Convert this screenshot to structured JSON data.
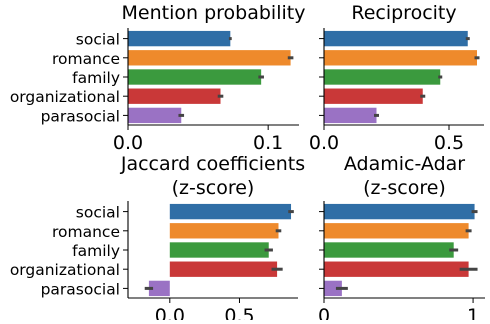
{
  "chart_data": [
    {
      "type": "bar",
      "orientation": "horizontal",
      "title": "Mention probability",
      "categories": [
        "social",
        "romance",
        "family",
        "organizational",
        "parasocial"
      ],
      "values": [
        0.073,
        0.116,
        0.095,
        0.066,
        0.038
      ],
      "errors": [
        0.001,
        0.002,
        0.002,
        0.002,
        0.002
      ],
      "xlim": [
        0.0,
        0.122
      ],
      "xticks": [
        0.0,
        0.1
      ],
      "xtick_labels": [
        "0.0",
        "0.1"
      ],
      "show_category_labels": true
    },
    {
      "type": "bar",
      "orientation": "horizontal",
      "title": "Reciprocity",
      "categories": [
        "social",
        "romance",
        "family",
        "organizational",
        "parasocial"
      ],
      "values": [
        0.575,
        0.612,
        0.465,
        0.395,
        0.21
      ],
      "errors": [
        0.008,
        0.01,
        0.008,
        0.01,
        0.01
      ],
      "xlim": [
        0.0,
        0.64
      ],
      "xticks": [
        0.0,
        0.5
      ],
      "xtick_labels": [
        "0.0",
        "0.5"
      ],
      "show_category_labels": false
    },
    {
      "type": "bar",
      "orientation": "horizontal",
      "title": "Jaccard coefficients\n(z-score)",
      "categories": [
        "social",
        "romance",
        "family",
        "organizational",
        "parasocial"
      ],
      "values": [
        0.87,
        0.78,
        0.71,
        0.77,
        -0.15
      ],
      "errors": [
        0.02,
        0.02,
        0.03,
        0.04,
        0.03
      ],
      "xlim": [
        -0.3,
        0.92
      ],
      "xticks": [
        0.0,
        0.5
      ],
      "xtick_labels": [
        "0.0",
        "0.5"
      ],
      "show_category_labels": true
    },
    {
      "type": "bar",
      "orientation": "horizontal",
      "title": "Adamic-Adar\n(z-score)",
      "categories": [
        "social",
        "romance",
        "family",
        "organizational",
        "parasocial"
      ],
      "values": [
        1.01,
        0.97,
        0.87,
        0.97,
        0.12
      ],
      "errors": [
        0.02,
        0.02,
        0.03,
        0.06,
        0.04
      ],
      "xlim": [
        0.0,
        1.08
      ],
      "xticks": [
        0,
        1
      ],
      "xtick_labels": [
        "0",
        "1"
      ],
      "show_category_labels": false
    }
  ],
  "colors": {
    "social": "#2f6ea6",
    "romance": "#ee8a2c",
    "family": "#3b9a3e",
    "organizational": "#c93838",
    "parasocial": "#9a72c4",
    "errorbar": "#444444",
    "axis": "#000000"
  }
}
